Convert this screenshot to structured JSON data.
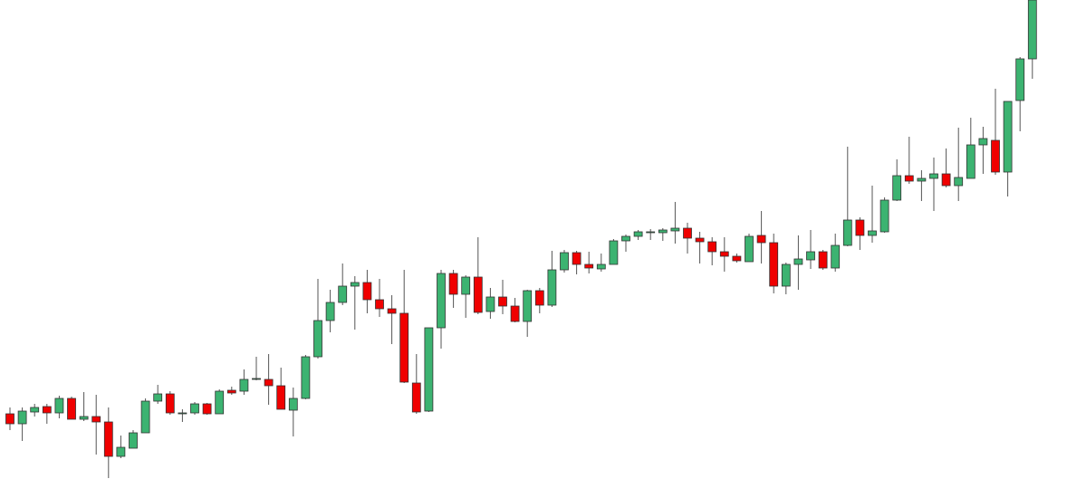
{
  "chart_data": {
    "type": "candlestick",
    "open": [
      72,
      61,
      74,
      80,
      73,
      89,
      66,
      69,
      63,
      25,
      34,
      51,
      86,
      94,
      72,
      73,
      83,
      72,
      98,
      97,
      110,
      110,
      103,
      76,
      89,
      135,
      175,
      195,
      213,
      217,
      198,
      188,
      183,
      106,
      75,
      167,
      227,
      204,
      223,
      185,
      201,
      191,
      174,
      208,
      192,
      231,
      250,
      237,
      232,
      237,
      263,
      268,
      272,
      272,
      274,
      277,
      266,
      262,
      251,
      246,
      240,
      269,
      261,
      213,
      237,
      242,
      251,
      233,
      258,
      286,
      269,
      273,
      308,
      335,
      329,
      332,
      337,
      324,
      332,
      369,
      374,
      339,
      418,
      464
    ],
    "high": [
      79,
      79,
      83,
      83,
      92,
      91,
      96,
      93,
      79,
      48,
      54,
      89,
      104,
      97,
      77,
      85,
      84,
      99,
      102,
      121,
      135,
      138,
      123,
      101,
      137,
      221,
      209,
      238,
      224,
      231,
      221,
      203,
      231,
      138,
      167,
      231,
      231,
      225,
      267,
      211,
      220,
      200,
      209,
      211,
      252,
      253,
      252,
      251,
      249,
      265,
      270,
      275,
      276,
      277,
      306,
      283,
      273,
      267,
      267,
      249,
      271,
      296,
      271,
      239,
      269,
      275,
      253,
      271,
      367,
      289,
      324,
      311,
      353,
      378,
      341,
      355,
      365,
      388,
      399,
      389,
      431,
      417,
      466,
      529
    ],
    "low": [
      54,
      42,
      69,
      61,
      67,
      66,
      64,
      27,
      1,
      23,
      34,
      51,
      83,
      71,
      63,
      71,
      71,
      72,
      93,
      93,
      109,
      82,
      77,
      47,
      88,
      133,
      162,
      192,
      165,
      183,
      179,
      149,
      106,
      72,
      74,
      144,
      189,
      178,
      182,
      177,
      182,
      173,
      157,
      183,
      190,
      228,
      226,
      227,
      229,
      237,
      251,
      264,
      264,
      263,
      260,
      249,
      238,
      236,
      229,
      239,
      240,
      238,
      205,
      204,
      209,
      232,
      231,
      229,
      257,
      253,
      261,
      272,
      307,
      326,
      307,
      296,
      322,
      307,
      332,
      337,
      336,
      312,
      384,
      442
    ],
    "close": [
      61,
      75,
      79,
      73,
      89,
      66,
      69,
      63,
      25,
      35,
      51,
      86,
      94,
      73,
      73,
      83,
      72,
      97,
      95,
      110,
      111,
      103,
      77,
      89,
      135,
      175,
      195,
      213,
      217,
      198,
      188,
      183,
      107,
      74,
      167,
      227,
      204,
      223,
      184,
      201,
      191,
      174,
      208,
      192,
      231,
      250,
      237,
      233,
      237,
      263,
      268,
      273,
      273,
      275,
      277,
      266,
      262,
      251,
      246,
      241,
      268,
      261,
      213,
      237,
      243,
      251,
      233,
      258,
      286,
      269,
      274,
      308,
      335,
      329,
      332,
      337,
      324,
      333,
      369,
      376,
      339,
      417,
      464,
      529
    ],
    "up_color": "#3cb371",
    "down_color": "#f00000",
    "ylim": [
      0,
      529
    ]
  }
}
